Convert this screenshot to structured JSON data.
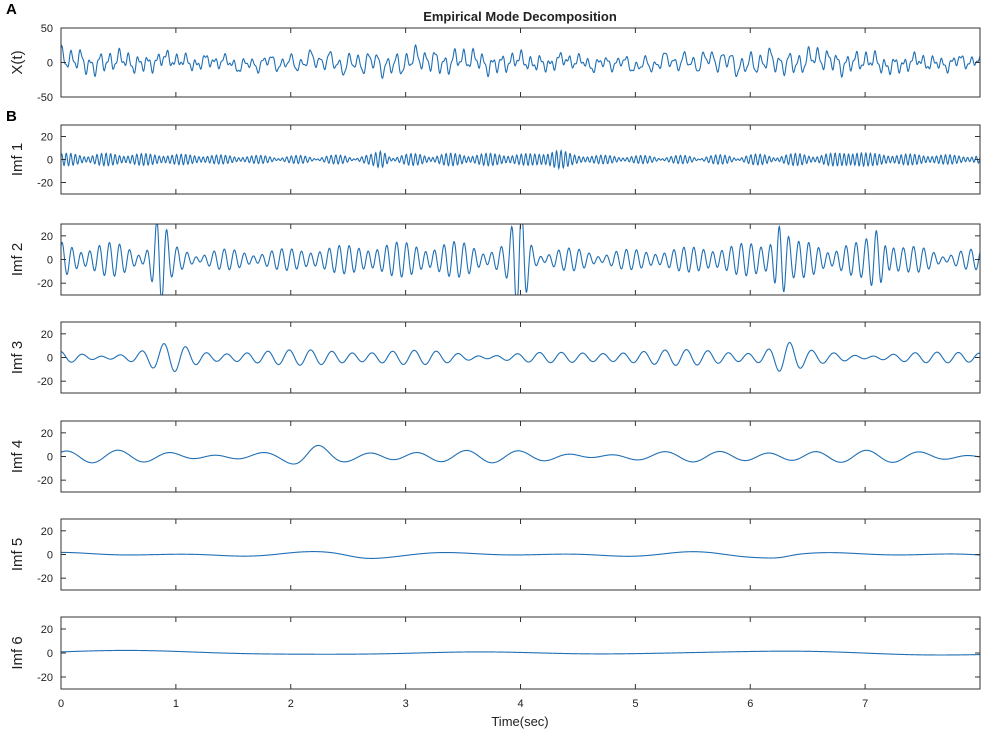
{
  "figure": {
    "title": "Empirical Mode Decomposition",
    "panel_a": "A",
    "panel_b": "B",
    "xlabel": "Time(sec)"
  },
  "chart_data": {
    "type": "line",
    "title": "Empirical Mode Decomposition",
    "xlabel": "Time(sec)",
    "xlim": [
      0,
      8
    ],
    "xticks": [
      0,
      1,
      2,
      3,
      4,
      5,
      6,
      7
    ],
    "line_color": "#1f6fb4",
    "grid": false,
    "panels": [
      {
        "ylabel": "X(t)",
        "ylim": [
          -50,
          50
        ],
        "yticks": [
          -50,
          0,
          50
        ],
        "components": [
          {
            "freq": 26.0,
            "amp": 4.5,
            "phase": 0.3
          },
          {
            "freq": 12.0,
            "amp": 12.0,
            "phase": 1.1
          },
          {
            "freq": 5.5,
            "amp": 6.0,
            "phase": 2.0
          },
          {
            "freq": 2.3,
            "amp": 4.5,
            "phase": 0.7
          },
          {
            "freq": 0.9,
            "amp": 2.5,
            "phase": 1.8
          },
          {
            "freq": 0.35,
            "amp": 1.5,
            "phase": 0.2
          }
        ]
      },
      {
        "ylabel": "Imf 1",
        "ylim": [
          -30,
          30
        ],
        "yticks": [
          -20,
          0,
          20
        ],
        "components": [
          {
            "freq": 26.0,
            "amp": 4.0,
            "phase": 0.3
          },
          {
            "freq": 23.0,
            "amp": 2.0,
            "phase": 1.4
          }
        ],
        "bursts": [
          {
            "t": 2.8,
            "width": 0.06,
            "amp": 5.0
          },
          {
            "t": 4.3,
            "width": 0.12,
            "amp": 6.0
          },
          {
            "t": 6.9,
            "width": 0.08,
            "amp": 5.0
          }
        ]
      },
      {
        "ylabel": "Imf 2",
        "ylim": [
          -30,
          30
        ],
        "yticks": [
          -20,
          0,
          20
        ],
        "components": [
          {
            "freq": 12.0,
            "amp": 11.0,
            "phase": 1.1
          },
          {
            "freq": 10.0,
            "amp": 5.0,
            "phase": 0.4
          }
        ],
        "bursts": [
          {
            "t": 0.85,
            "width": 0.08,
            "amp": 16.0
          },
          {
            "t": 4.0,
            "width": 0.08,
            "amp": 18.0
          },
          {
            "t": 6.25,
            "width": 0.07,
            "amp": 14.0
          },
          {
            "t": 7.15,
            "width": 0.1,
            "amp": 16.0
          }
        ]
      },
      {
        "ylabel": "Imf 3",
        "ylim": [
          -30,
          30
        ],
        "yticks": [
          -20,
          0,
          20
        ],
        "components": [
          {
            "freq": 5.5,
            "amp": 5.5,
            "phase": 2.0
          },
          {
            "freq": 4.6,
            "amp": 2.0,
            "phase": 0.9
          }
        ],
        "bursts": [
          {
            "t": 0.95,
            "width": 0.22,
            "amp": 11.0
          },
          {
            "t": 6.3,
            "width": 0.15,
            "amp": 8.0
          }
        ]
      },
      {
        "ylabel": "Imf 4",
        "ylim": [
          -30,
          30
        ],
        "yticks": [
          -20,
          0,
          20
        ],
        "components": [
          {
            "freq": 2.3,
            "amp": 4.5,
            "phase": 0.7
          },
          {
            "freq": 1.7,
            "amp": 2.0,
            "phase": 2.4
          }
        ],
        "bursts": [
          {
            "t": 2.2,
            "width": 0.2,
            "amp": 7.0
          }
        ]
      },
      {
        "ylabel": "Imf 5",
        "ylim": [
          -30,
          30
        ],
        "yticks": [
          -20,
          0,
          20
        ],
        "components": [
          {
            "freq": 0.9,
            "amp": 2.0,
            "phase": 1.8
          },
          {
            "freq": 0.6,
            "amp": 1.0,
            "phase": 0.3
          }
        ],
        "bursts": [
          {
            "t": 2.55,
            "width": 0.25,
            "amp": 3.0
          },
          {
            "t": 6.3,
            "width": 0.15,
            "amp": 4.0
          }
        ]
      },
      {
        "ylabel": "Imf 6",
        "ylim": [
          -30,
          30
        ],
        "yticks": [
          -20,
          0,
          20
        ],
        "components": [
          {
            "freq": 0.35,
            "amp": 1.5,
            "phase": 0.2
          },
          {
            "freq": 0.2,
            "amp": 0.8,
            "phase": 1.0
          }
        ]
      }
    ]
  }
}
